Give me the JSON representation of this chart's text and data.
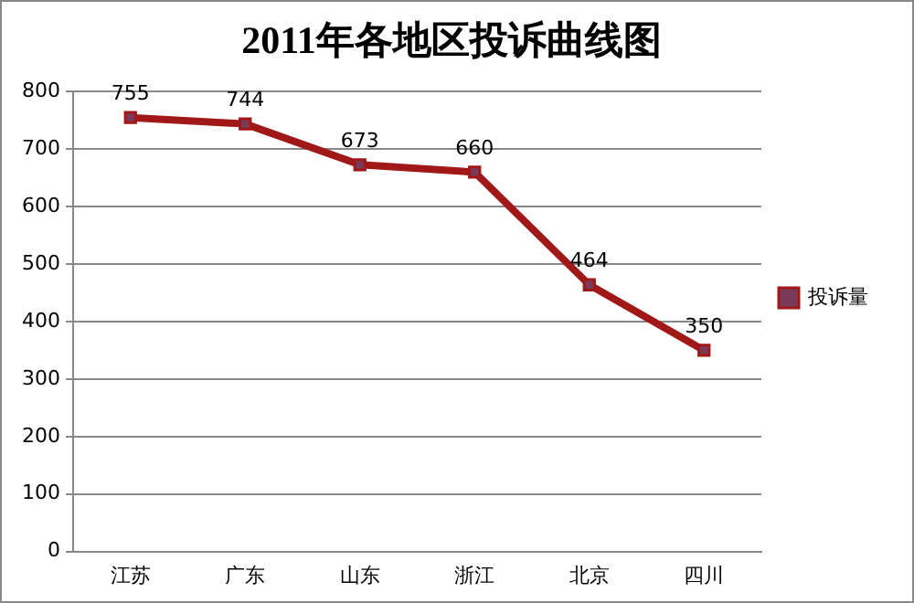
{
  "chart_data": {
    "type": "line",
    "title": "2011年各地区投诉曲线图",
    "categories": [
      "江苏",
      "广东",
      "山东",
      "浙江",
      "北京",
      "四川"
    ],
    "series": [
      {
        "name": "投诉量",
        "color": "#a01818",
        "values": [
          755,
          744,
          673,
          660,
          464,
          350
        ]
      }
    ],
    "ylim": [
      0,
      800
    ],
    "yticks": [
      0,
      100,
      200,
      300,
      400,
      500,
      600,
      700,
      800
    ],
    "grid": "y",
    "legend": "right",
    "marker": "square",
    "line_style": "solid",
    "data_labels": true
  }
}
